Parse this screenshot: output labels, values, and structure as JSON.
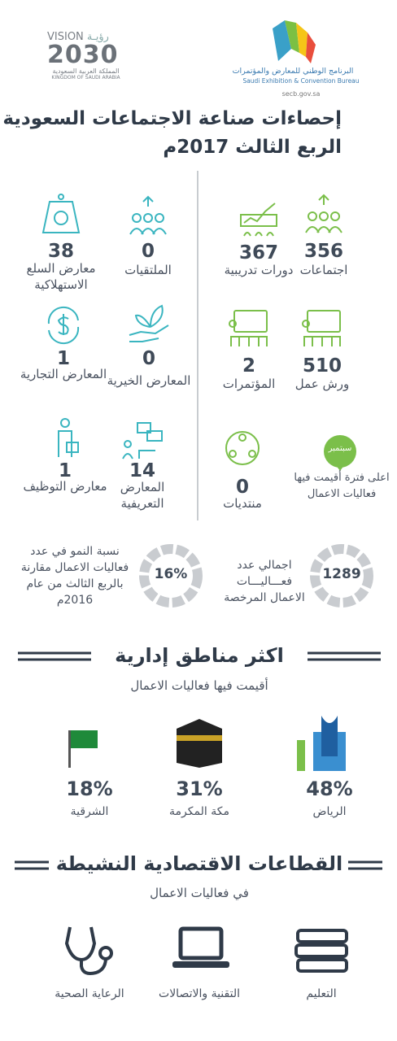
{
  "header": {
    "vision_logo": {
      "label": "VISION",
      "arabic": "رؤيـة",
      "year": "2030",
      "country_ar": "المملكة العربية السعودية",
      "country_en": "KINGDOM OF SAUDI ARABIA"
    },
    "secb_logo": {
      "name_ar": "البرنامج الوطني للمعارض والمؤتمرات",
      "name_en": "Saudi Exhibition & Convention Bureau",
      "url": "secb.gov.sa"
    }
  },
  "title": {
    "line1": "إحصاءات صناعة الاجتماعات السعودية",
    "line2": "الربع الثالث 2017م"
  },
  "stats": [
    {
      "value": "356",
      "label": "اجتماعات"
    },
    {
      "value": "367",
      "label": "دورات تدريبية"
    },
    {
      "value": "0",
      "label": "الملتقيات"
    },
    {
      "value": "38",
      "label": "معارض السلع الاستهلاكية"
    },
    {
      "value": "510",
      "label": "ورش عمل"
    },
    {
      "value": "2",
      "label": "المؤتمرات"
    },
    {
      "value": "0",
      "label": "المعارض الخيرية"
    },
    {
      "value": "1",
      "label": "المعارض التجارية"
    },
    {
      "value": "0",
      "label": "منتديات"
    },
    {
      "value": "14",
      "label": "المعارض التعريفية"
    },
    {
      "value": "1",
      "label": "معارض التوظيف"
    }
  ],
  "highlight": {
    "badge": "سبتمبر",
    "text": "اعلى فترة أقيمت فيها فعاليات الاعمال"
  },
  "totals": [
    {
      "value": "1289",
      "label": "اجمالي عدد فعـــاليـــات الاعمال المرخصة"
    },
    {
      "value": "16%",
      "label": "نسبة النمو في عدد فعاليات الاعمال مقارنة بالربع الثالث من عام 2016م"
    }
  ],
  "regions": {
    "title": "اكثر مناطق إدارية",
    "subtitle": "أقيمت فيها فعاليات الاعمال",
    "items": [
      {
        "value": "48%",
        "label": "الرياض"
      },
      {
        "value": "31%",
        "label": "مكة المكرمة"
      },
      {
        "value": "18%",
        "label": "الشرقية"
      }
    ]
  },
  "sectors": {
    "title": "القطاعات الاقتصادية النشيطة",
    "subtitle": "في فعاليات الاعمال",
    "items": [
      {
        "label": "التعليم"
      },
      {
        "label": "التقنية والاتصالات"
      },
      {
        "label": "الرعاية الصحية"
      }
    ]
  }
}
